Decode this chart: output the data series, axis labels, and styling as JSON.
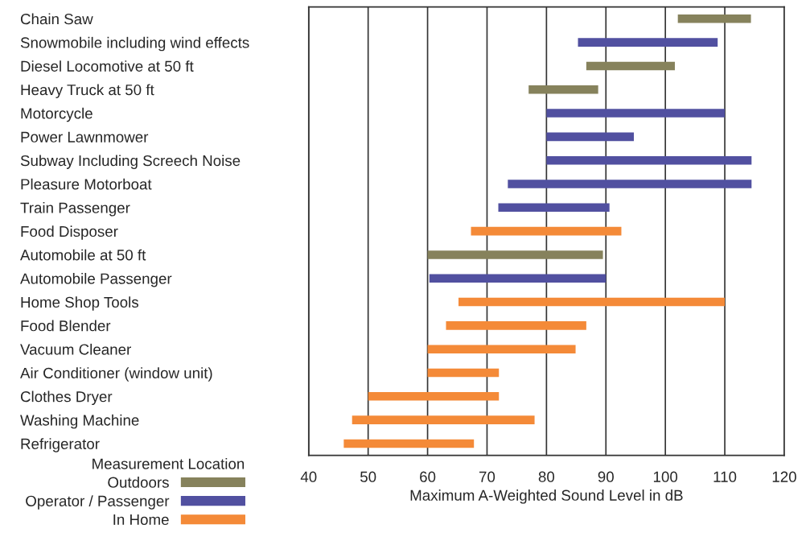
{
  "chart_data": {
    "type": "bar",
    "orientation": "horizontal",
    "xlabel": "Maximum A-Weighted Sound Level in dB",
    "legend_title": "Measurement Location",
    "categories": [
      "Chain Saw",
      "Snowmobile including wind effects",
      "Diesel Locomotive at 50 ft",
      "Heavy Truck at 50 ft",
      "Motorcycle",
      "Power Lawnmower",
      "Subway Including Screech Noise",
      "Pleasure Motorboat",
      "Train Passenger",
      "Food Disposer",
      "Automobile at 50 ft",
      "Automobile Passenger",
      "Home Shop Tools",
      "Food Blender",
      "Vacuum Cleaner",
      "Air Conditioner (window unit)",
      "Clothes Dryer",
      "Washing Machine",
      "Refrigerator"
    ],
    "series": [
      {
        "name": "Outdoors",
        "color": "#86825c",
        "values": [
          12.3,
          null,
          14.9,
          11.7,
          null,
          null,
          null,
          null,
          null,
          null,
          29.5,
          null,
          null,
          null,
          null,
          null,
          null,
          null,
          null
        ],
        "base": [
          102.1,
          null,
          86.7,
          77.0,
          null,
          null,
          null,
          null,
          null,
          null,
          60,
          null,
          null,
          null,
          null,
          null,
          null,
          null,
          null
        ]
      },
      {
        "name": "Operator / Passenger",
        "color": "#5150a0",
        "values": [
          null,
          23.5,
          null,
          null,
          30,
          14.7,
          34.5,
          41,
          18.7,
          null,
          null,
          29.7,
          null,
          null,
          null,
          null,
          null,
          null,
          null
        ],
        "base": [
          null,
          85.3,
          null,
          null,
          80,
          80,
          80,
          73.5,
          71.9,
          null,
          null,
          60.3,
          null,
          null,
          null,
          null,
          null,
          null,
          null
        ]
      },
      {
        "name": "In Home",
        "color": "#f48a38",
        "values": [
          null,
          null,
          null,
          null,
          null,
          null,
          null,
          null,
          null,
          25.3,
          null,
          null,
          44.8,
          23.6,
          24.9,
          12,
          22,
          30.7,
          21.9
        ],
        "base": [
          null,
          null,
          null,
          null,
          null,
          null,
          null,
          null,
          null,
          67.3,
          null,
          null,
          65.2,
          63.1,
          60,
          60,
          50,
          47.3,
          45.9
        ]
      }
    ],
    "xlim": [
      40,
      120
    ],
    "xticks": [
      40,
      50,
      60,
      70,
      80,
      90,
      100,
      110,
      120
    ],
    "grid": "x",
    "legend": "bottom left"
  }
}
